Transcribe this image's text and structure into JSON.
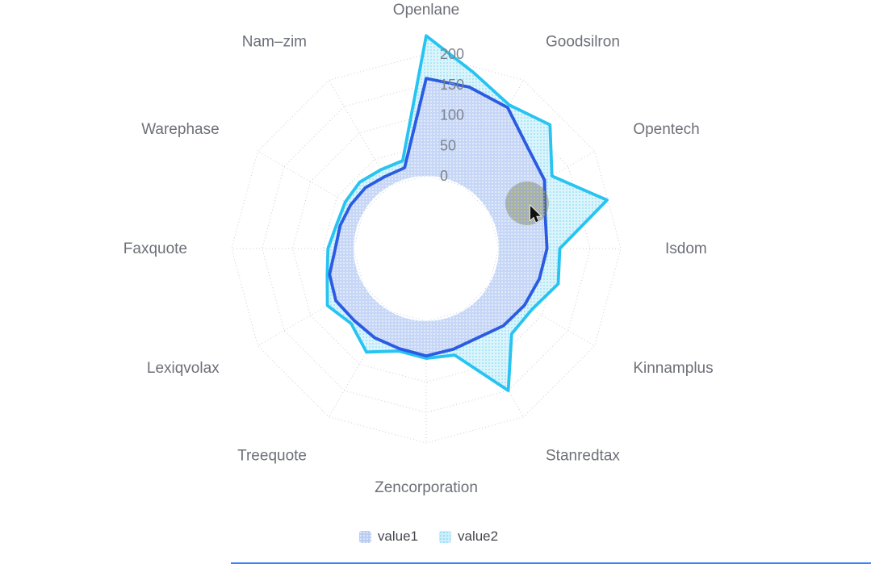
{
  "chart_data": {
    "type": "radar",
    "shape": "polygon",
    "start_angle_deg": 0,
    "clockwise": true,
    "angle_step_deg": 15,
    "categories": [
      "Openlane",
      "",
      "Goodsilron",
      "",
      "Opentech",
      "",
      "Isdom",
      "",
      "Kinnamplus",
      "",
      "Stanredtax",
      "",
      "Zencorporation",
      "",
      "Treequote",
      "",
      "Lexiqvolax",
      "",
      "Faxquote",
      "",
      "Warephase",
      "",
      "Nam–zim",
      ""
    ],
    "series": [
      {
        "name": "value1",
        "line_color": "#2B5BE2",
        "fill_color": "#c5d6f6",
        "decal_dot_color": "rgba(255,255,255,0.55)",
        "values": [
          160,
          155,
          148,
          116,
          105,
          83,
          79,
          73,
          67,
          60,
          50,
          52,
          57,
          51,
          50,
          48,
          52,
          45,
          30,
          27,
          24,
          22,
          17,
          18
        ]
      },
      {
        "name": "value2",
        "line_color": "#27C3F1",
        "fill_color": "#dcf4fb",
        "decal_dot_color": "rgba(39,194,241,0.30)",
        "values": [
          230,
          180,
          153,
          168,
          119,
          188,
          100,
          105,
          81,
          79,
          150,
          62,
          61,
          55,
          77,
          55,
          68,
          49,
          42,
          33,
          34,
          35,
          30,
          30
        ]
      }
    ],
    "radial_axis": {
      "min": 0,
      "max": 200,
      "tick_interval": 50,
      "tick_labels": [
        "0",
        "50",
        "100",
        "150",
        "200"
      ]
    },
    "legend": {
      "items": [
        "value1",
        "value2"
      ],
      "position": "bottom"
    },
    "grid": {
      "show": true,
      "style": "dotted",
      "color": "#c9ccd6"
    },
    "axis_label_color": "#7d828f",
    "category_label_color": "#6E7079"
  },
  "hover_marker": {
    "visible": true,
    "color": "rgba(115,120,112,0.42)",
    "dot_color": "rgba(200,205,75,0.55)"
  },
  "cursor": {
    "visible": true,
    "type": "arrow"
  },
  "bottom_bar": {
    "visible": true,
    "color": "#3b82f6"
  }
}
